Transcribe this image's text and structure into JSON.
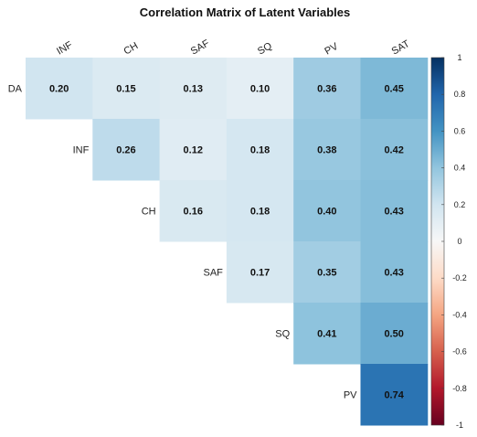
{
  "chart_data": {
    "type": "heatmap",
    "title": "Correlation Matrix of Latent Variables",
    "columns": [
      "INF",
      "CH",
      "SAF",
      "SQ",
      "PV",
      "SAT"
    ],
    "rows": [
      "DA",
      "INF",
      "CH",
      "SAF",
      "SQ",
      "PV"
    ],
    "cells": [
      [
        0.2,
        0.15,
        0.13,
        0.1,
        0.36,
        0.45
      ],
      [
        null,
        0.26,
        0.12,
        0.18,
        0.38,
        0.42
      ],
      [
        null,
        null,
        0.16,
        0.18,
        0.4,
        0.43
      ],
      [
        null,
        null,
        null,
        0.17,
        0.35,
        0.43
      ],
      [
        null,
        null,
        null,
        null,
        0.41,
        0.5
      ],
      [
        null,
        null,
        null,
        null,
        null,
        0.74
      ]
    ],
    "value_format": "2 decimals",
    "color_scale": {
      "range": [
        -1,
        1
      ],
      "ticks": [
        "1",
        "0.8",
        "0.6",
        "0.4",
        "0.2",
        "0",
        "-0.2",
        "-0.4",
        "-0.6",
        "-0.8",
        "-1"
      ],
      "low_color": "#67001f",
      "mid_color": "#f7f7f7",
      "high_color": "#053061"
    },
    "legend": "right"
  }
}
